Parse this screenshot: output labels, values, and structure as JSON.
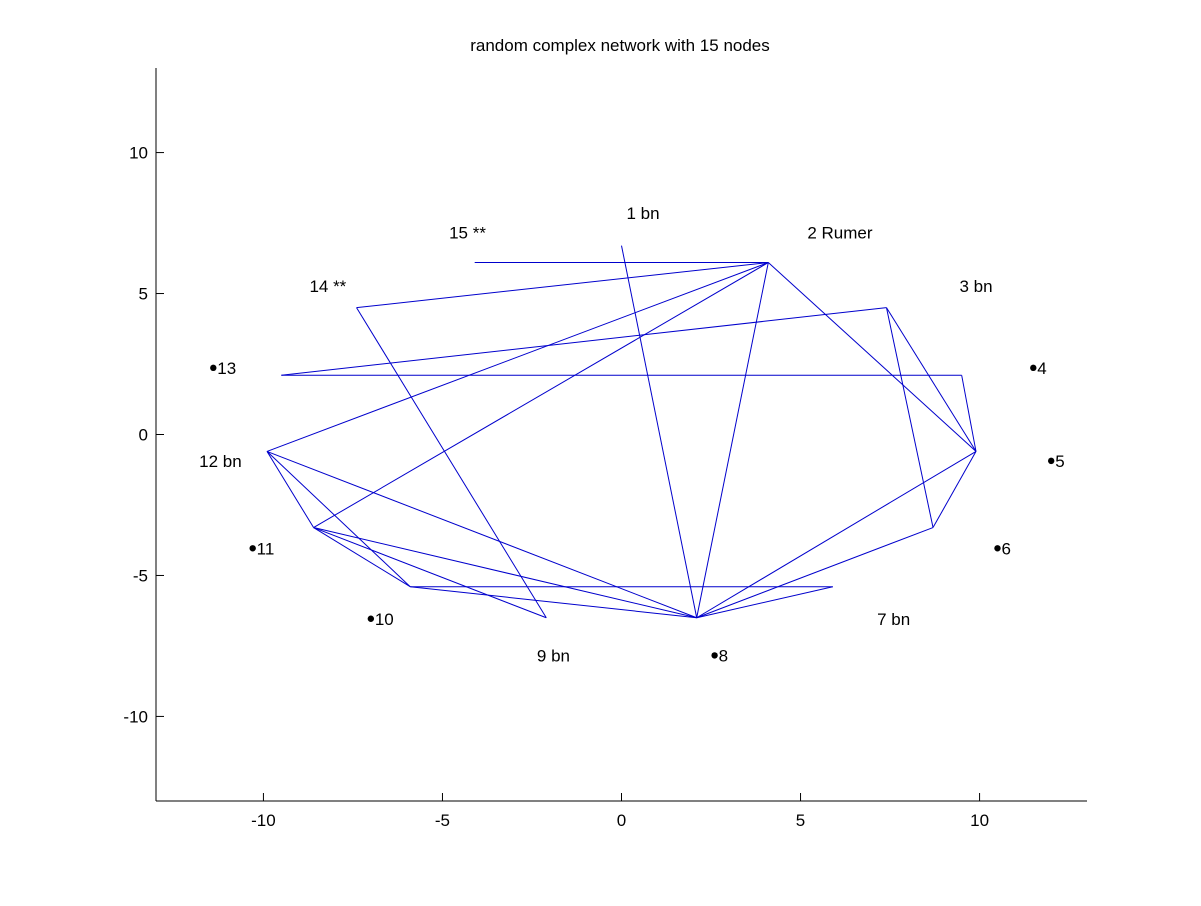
{
  "chart_data": {
    "type": "network",
    "title": "random complex network with 15 nodes",
    "xlabel": "",
    "ylabel": "",
    "xlim": [
      -13,
      13
    ],
    "ylim": [
      -13,
      13
    ],
    "xticks": [
      -10,
      -5,
      0,
      5,
      10
    ],
    "yticks": [
      10,
      5,
      0,
      -5,
      -10
    ],
    "grid": false,
    "colors": {
      "edge": "#0000cc",
      "node": "#000000",
      "axis": "#000000",
      "background": "#ffffff"
    },
    "nodes": [
      {
        "label": "1 bn",
        "x": 0.6,
        "y": 7.9,
        "marker": false
      },
      {
        "label": "2 Rumer",
        "x": 6.1,
        "y": 7.2,
        "marker": false
      },
      {
        "label": "3 bn",
        "x": 9.9,
        "y": 5.3,
        "marker": false
      },
      {
        "label": "4",
        "x": 11.5,
        "y": 2.4,
        "marker": true
      },
      {
        "label": "5",
        "x": 12.0,
        "y": -0.9,
        "marker": true
      },
      {
        "label": "6",
        "x": 10.5,
        "y": -4.0,
        "marker": true
      },
      {
        "label": "7 bn",
        "x": 7.6,
        "y": -6.5,
        "marker": false
      },
      {
        "label": "8",
        "x": 2.6,
        "y": -7.8,
        "marker": true
      },
      {
        "label": "9 bn",
        "x": -1.9,
        "y": -7.8,
        "marker": false
      },
      {
        "label": "10",
        "x": -7.0,
        "y": -6.5,
        "marker": true
      },
      {
        "label": "11",
        "x": -10.3,
        "y": -4.0,
        "marker": true
      },
      {
        "label": "12 bn",
        "x": -11.2,
        "y": -0.9,
        "marker": false
      },
      {
        "label": "13",
        "x": -11.4,
        "y": 2.4,
        "marker": true
      },
      {
        "label": "14 **",
        "x": -8.2,
        "y": 5.3,
        "marker": false
      },
      {
        "label": "15 **",
        "x": -4.3,
        "y": 7.2,
        "marker": false
      }
    ],
    "edges": [
      [
        [
          -4.1,
          6.1
        ],
        [
          4.1,
          6.1
        ]
      ],
      [
        [
          -7.4,
          4.5
        ],
        [
          4.1,
          6.1
        ]
      ],
      [
        [
          -9.9,
          -0.6
        ],
        [
          4.1,
          6.1
        ]
      ],
      [
        [
          -8.6,
          -3.3
        ],
        [
          4.1,
          6.1
        ]
      ],
      [
        [
          2.1,
          -6.5
        ],
        [
          4.1,
          6.1
        ]
      ],
      [
        [
          4.1,
          6.1
        ],
        [
          9.9,
          -0.6
        ]
      ],
      [
        [
          0.0,
          6.7
        ],
        [
          2.1,
          -6.5
        ]
      ],
      [
        [
          -9.5,
          2.1
        ],
        [
          7.4,
          4.5
        ]
      ],
      [
        [
          -9.5,
          2.1
        ],
        [
          9.5,
          2.1
        ]
      ],
      [
        [
          9.5,
          2.1
        ],
        [
          9.9,
          -0.6
        ]
      ],
      [
        [
          7.4,
          4.5
        ],
        [
          9.9,
          -0.6
        ]
      ],
      [
        [
          7.4,
          4.5
        ],
        [
          8.7,
          -3.3
        ]
      ],
      [
        [
          8.7,
          -3.3
        ],
        [
          9.9,
          -0.6
        ]
      ],
      [
        [
          8.7,
          -3.3
        ],
        [
          2.1,
          -6.5
        ]
      ],
      [
        [
          9.9,
          -0.6
        ],
        [
          2.1,
          -6.5
        ]
      ],
      [
        [
          5.9,
          -5.4
        ],
        [
          2.1,
          -6.5
        ]
      ],
      [
        [
          -5.9,
          -5.4
        ],
        [
          5.9,
          -5.4
        ]
      ],
      [
        [
          -7.4,
          4.5
        ],
        [
          -2.1,
          -6.5
        ]
      ],
      [
        [
          -2.1,
          -6.5
        ],
        [
          -8.6,
          -3.3
        ]
      ],
      [
        [
          -9.9,
          -0.6
        ],
        [
          -8.6,
          -3.3
        ]
      ],
      [
        [
          -9.9,
          -0.6
        ],
        [
          -5.9,
          -5.4
        ]
      ],
      [
        [
          -9.9,
          -0.6
        ],
        [
          2.1,
          -6.5
        ]
      ],
      [
        [
          -8.6,
          -3.3
        ],
        [
          -5.9,
          -5.4
        ]
      ],
      [
        [
          -8.6,
          -3.3
        ],
        [
          2.1,
          -6.5
        ]
      ],
      [
        [
          -5.9,
          -5.4
        ],
        [
          2.1,
          -6.5
        ]
      ]
    ]
  }
}
